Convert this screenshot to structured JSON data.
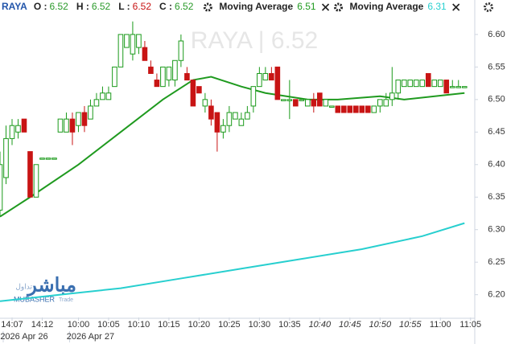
{
  "chart_data": {
    "type": "candlestick",
    "symbol": "RAYA",
    "ohlc_legend": [
      {
        "label": "O :",
        "value": 6.52
      },
      {
        "label": "H :",
        "value": 6.52
      },
      {
        "label": "L :",
        "value": 6.52
      },
      {
        "label": "C :",
        "value": 6.52
      }
    ],
    "watermark": "RAYA  |  6.52",
    "logo": {
      "arabic": "مباشر",
      "arabic_sub": "تداول",
      "latin": "MUBASHER",
      "latin_sub": "Trade"
    },
    "up_color": "#1a9a1a",
    "down_color": "#c81414",
    "xlim": [
      0,
      78.7
    ],
    "ylim": [
      6.165,
      6.653
    ],
    "yticks": [
      {
        "value": 6.6,
        "label": "6.60"
      },
      6.55,
      {
        "value": 6.5,
        "label": "6.50"
      },
      6.45,
      {
        "value": 6.4,
        "label": "6.40"
      },
      6.35,
      {
        "value": 6.3,
        "label": "6.30"
      },
      6.25,
      {
        "value": 6.2,
        "label": "6.20"
      }
    ],
    "xticks": [
      {
        "value": 2,
        "label": "14:07"
      },
      {
        "value": 7,
        "label": "14:12"
      },
      {
        "value": 13,
        "label": "10:00"
      },
      {
        "value": 18,
        "label": "10:05"
      },
      {
        "value": 23,
        "label": "10:10"
      },
      {
        "value": 28,
        "label": "10:15"
      },
      {
        "value": 33,
        "label": "10:20"
      },
      {
        "value": 38,
        "label": "10:25"
      },
      {
        "value": 43,
        "label": "10:30"
      },
      {
        "value": 48,
        "label": "10:35"
      },
      {
        "value": 53,
        "label": "10:40"
      },
      {
        "value": 58,
        "label": "10:45"
      },
      {
        "value": 63,
        "label": "10:50"
      },
      {
        "value": 68,
        "label": "10:55"
      },
      {
        "value": 73,
        "label": "11:00"
      },
      {
        "value": 78,
        "label": "11:05"
      }
    ],
    "date_ticks": [
      {
        "value": 4,
        "label": "2026 Apr 26"
      },
      {
        "value": 15,
        "label": "2026 Apr 27"
      }
    ],
    "candles": {
      "x": [
        0,
        1,
        2,
        3,
        4,
        5,
        6,
        7,
        8,
        9,
        10,
        11,
        12,
        13,
        14,
        15,
        16,
        17,
        18,
        19,
        20,
        21,
        22,
        23,
        24,
        25,
        26,
        27,
        28,
        29,
        30,
        31,
        32,
        33,
        34,
        35,
        36,
        37,
        38,
        39,
        40,
        41,
        42,
        43,
        44,
        45,
        46,
        47,
        48,
        49,
        50,
        51,
        52,
        53,
        54,
        55,
        56,
        57,
        58,
        59,
        60,
        61,
        62,
        63,
        64,
        65,
        66,
        67,
        68,
        69,
        70,
        71,
        72,
        73,
        74,
        75,
        76,
        77
      ],
      "open": [
        6.33,
        6.38,
        6.44,
        6.45,
        6.47,
        6.42,
        6.35,
        6.41,
        6.41,
        6.41,
        6.45,
        6.45,
        6.47,
        6.46,
        6.48,
        6.47,
        6.49,
        6.5,
        6.5,
        6.52,
        6.55,
        6.58,
        6.57,
        6.58,
        6.58,
        6.55,
        6.53,
        6.52,
        6.53,
        6.53,
        6.56,
        6.54,
        6.53,
        6.52,
        6.49,
        6.49,
        6.48,
        6.45,
        6.46,
        6.47,
        6.46,
        6.47,
        6.49,
        6.52,
        6.53,
        6.54,
        6.55,
        6.5,
        6.5,
        6.5,
        6.5,
        6.49,
        6.5,
        6.51,
        6.49,
        6.49,
        6.49,
        6.49,
        6.49,
        6.49,
        6.49,
        6.49,
        6.48,
        6.49,
        6.49,
        6.5,
        6.51,
        6.52,
        6.52,
        6.52,
        6.52,
        6.54,
        6.52,
        6.52,
        6.53,
        6.52,
        6.52,
        6.52
      ],
      "high": [
        6.42,
        6.46,
        6.47,
        6.47,
        6.47,
        6.42,
        6.4,
        6.41,
        6.41,
        6.41,
        6.47,
        6.48,
        6.48,
        6.48,
        6.49,
        6.5,
        6.51,
        6.52,
        6.52,
        6.55,
        6.6,
        6.6,
        6.62,
        6.6,
        6.59,
        6.56,
        6.54,
        6.55,
        6.55,
        6.56,
        6.6,
        6.55,
        6.53,
        6.52,
        6.51,
        6.5,
        6.48,
        6.47,
        6.49,
        6.48,
        6.48,
        6.49,
        6.52,
        6.55,
        6.55,
        6.55,
        6.55,
        6.5,
        6.53,
        6.5,
        6.5,
        6.5,
        6.51,
        6.51,
        6.5,
        6.49,
        6.49,
        6.49,
        6.49,
        6.49,
        6.49,
        6.49,
        6.49,
        6.5,
        6.51,
        6.55,
        6.53,
        6.53,
        6.53,
        6.53,
        6.53,
        6.54,
        6.53,
        6.53,
        6.53,
        6.53,
        6.53,
        6.52
      ],
      "low": [
        6.32,
        6.37,
        6.43,
        6.44,
        6.45,
        6.35,
        6.35,
        6.41,
        6.41,
        6.41,
        6.45,
        6.45,
        6.43,
        6.45,
        6.45,
        6.47,
        6.49,
        6.5,
        6.5,
        6.52,
        6.55,
        6.58,
        6.56,
        6.57,
        6.56,
        6.54,
        6.52,
        6.52,
        6.52,
        6.52,
        6.55,
        6.53,
        6.49,
        6.51,
        6.48,
        6.46,
        6.42,
        6.44,
        6.45,
        6.47,
        6.46,
        6.47,
        6.48,
        6.52,
        6.53,
        6.53,
        6.5,
        6.5,
        6.47,
        6.49,
        6.5,
        6.49,
        6.48,
        6.49,
        6.49,
        6.49,
        6.48,
        6.48,
        6.48,
        6.48,
        6.48,
        6.48,
        6.48,
        6.48,
        6.49,
        6.49,
        6.5,
        6.52,
        6.52,
        6.52,
        6.52,
        6.52,
        6.52,
        6.52,
        6.51,
        6.52,
        6.52,
        6.52
      ],
      "close": [
        6.4,
        6.44,
        6.46,
        6.46,
        6.45,
        6.35,
        6.4,
        6.41,
        6.41,
        6.41,
        6.47,
        6.47,
        6.45,
        6.48,
        6.46,
        6.49,
        6.5,
        6.51,
        6.51,
        6.55,
        6.6,
        6.6,
        6.6,
        6.6,
        6.56,
        6.54,
        6.52,
        6.55,
        6.55,
        6.56,
        6.59,
        6.53,
        6.49,
        6.51,
        6.5,
        6.47,
        6.45,
        6.46,
        6.48,
        6.48,
        6.47,
        6.48,
        6.52,
        6.54,
        6.54,
        6.53,
        6.5,
        6.5,
        6.5,
        6.49,
        6.5,
        6.5,
        6.49,
        6.49,
        6.5,
        6.49,
        6.48,
        6.48,
        6.48,
        6.48,
        6.48,
        6.48,
        6.49,
        6.5,
        6.5,
        6.51,
        6.53,
        6.53,
        6.53,
        6.53,
        6.53,
        6.52,
        6.53,
        6.53,
        6.51,
        6.52,
        6.52,
        6.52
      ]
    },
    "series": [
      {
        "name": "Moving Average",
        "color": "#1f9a1f",
        "last": 6.51,
        "x": [
          0,
          5,
          13,
          20,
          27,
          32,
          35,
          40,
          44,
          51,
          56,
          63,
          67,
          77
        ],
        "values": [
          6.32,
          6.35,
          6.4,
          6.45,
          6.5,
          6.53,
          6.535,
          6.52,
          6.51,
          6.5,
          6.5,
          6.505,
          6.5,
          6.51
        ]
      },
      {
        "name": "Moving Average",
        "color": "#27cfcf",
        "last": 6.31,
        "x": [
          0,
          5,
          10,
          20,
          30,
          40,
          50,
          60,
          70,
          77
        ],
        "values": [
          6.19,
          6.195,
          6.2,
          6.21,
          6.225,
          6.24,
          6.255,
          6.27,
          6.29,
          6.31
        ]
      }
    ]
  }
}
